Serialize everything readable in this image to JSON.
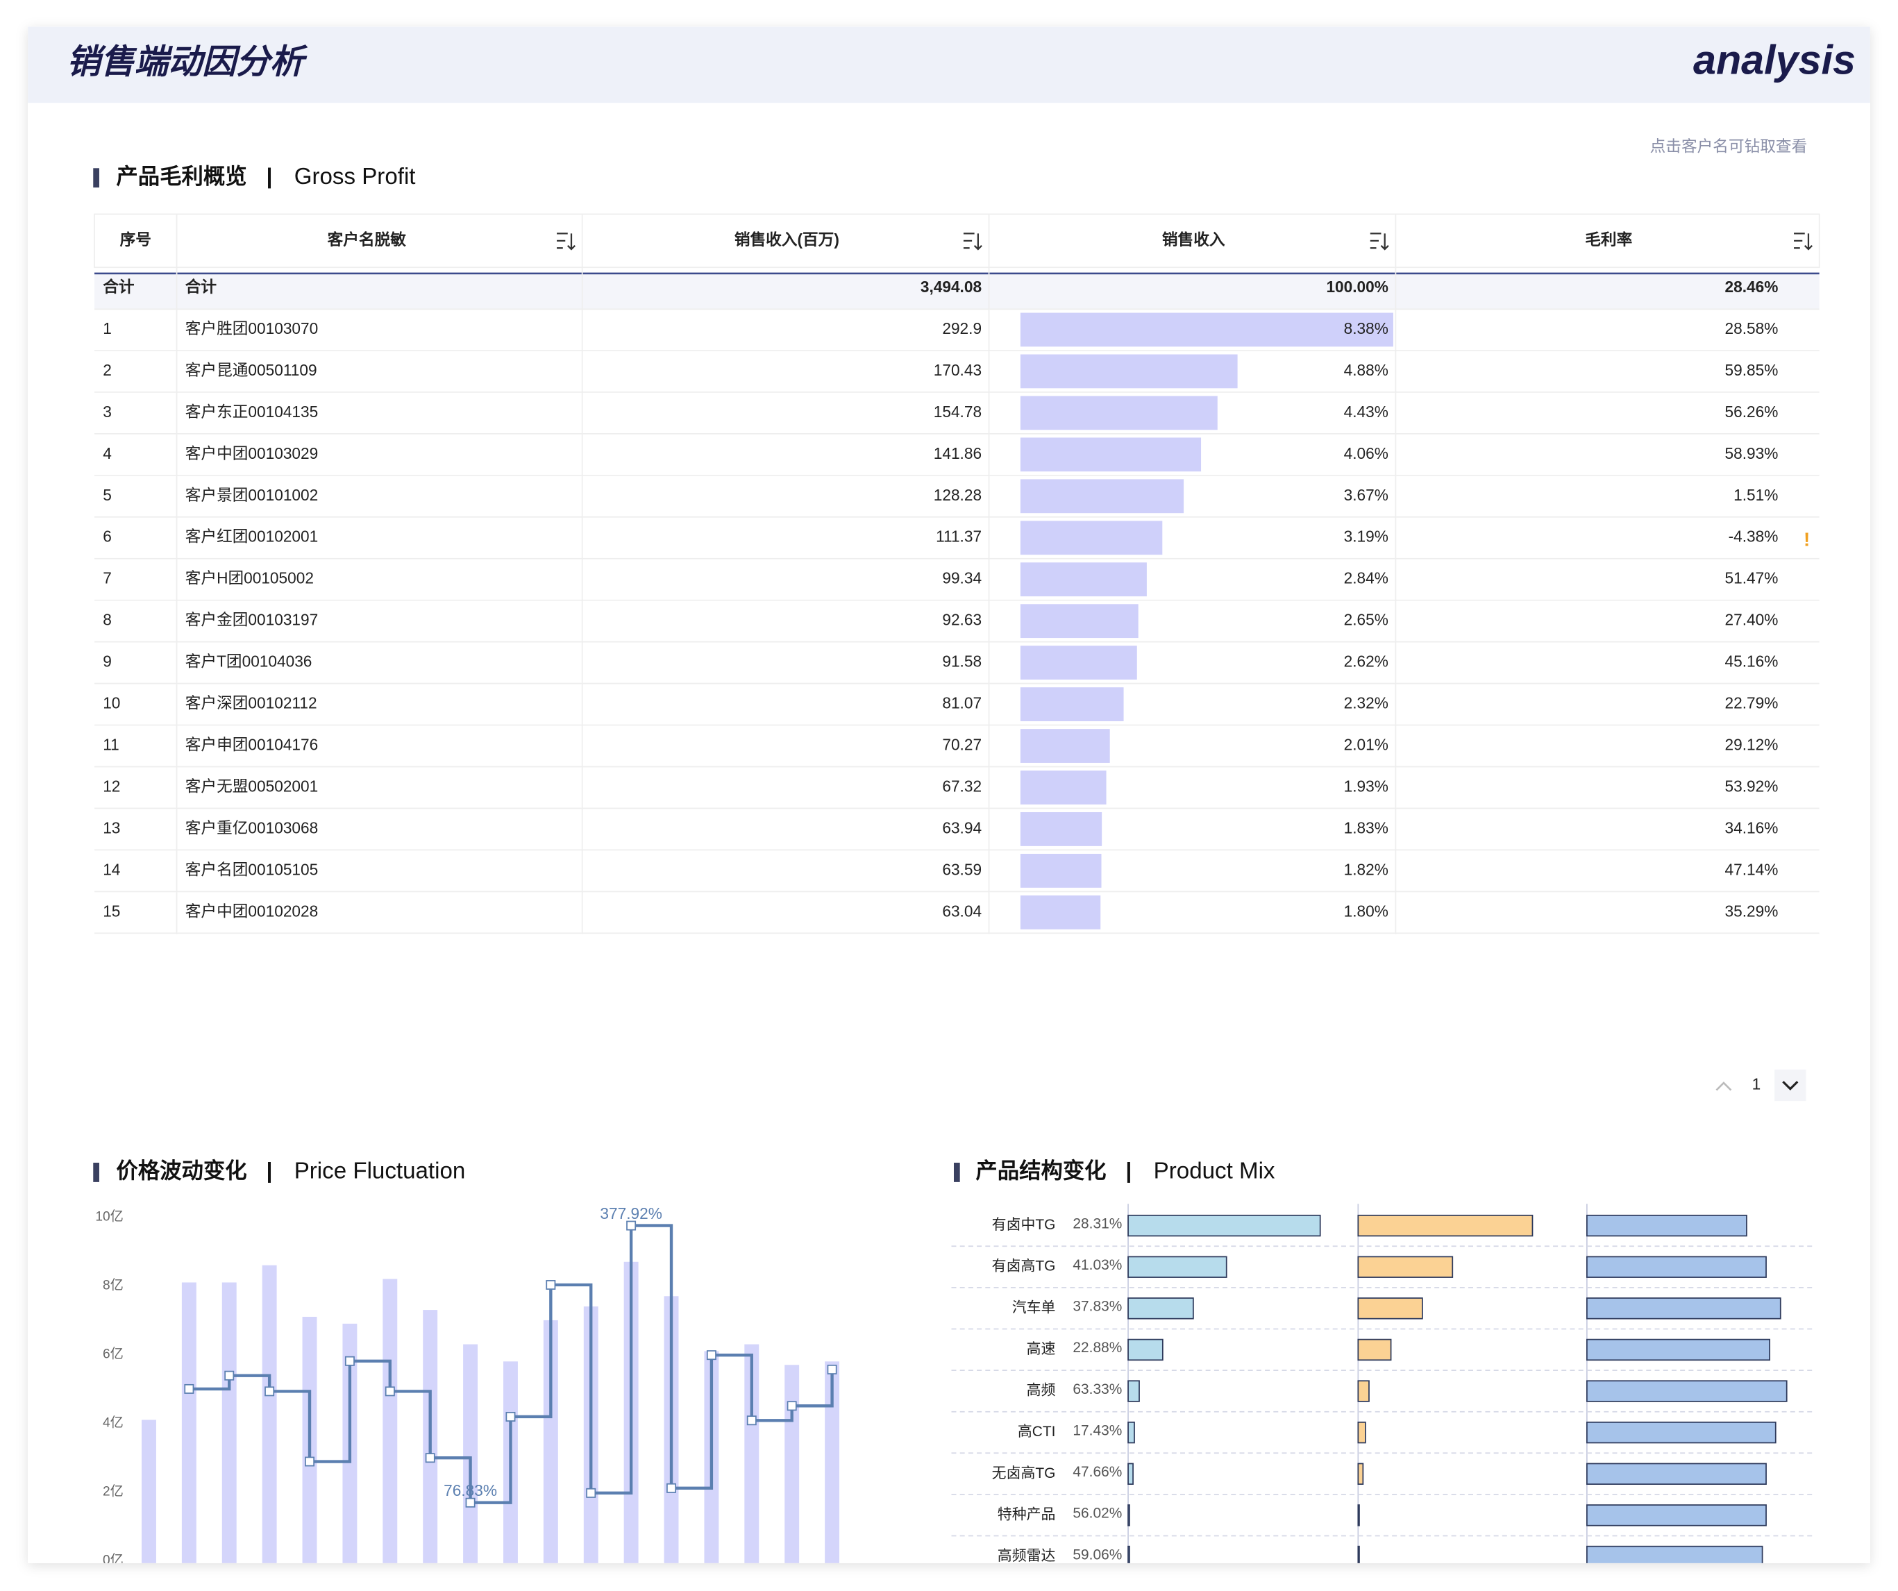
{
  "header": {
    "title": "销售端动因分析",
    "brand": "analysis"
  },
  "gross_profit": {
    "title": "产品毛利概览",
    "subtitle": "Gross Profit",
    "hint": "点击客户名可钻取查看",
    "page": 1,
    "columns": [
      "序号",
      "客户名脱敏",
      "销售收入(百万)",
      "销售收入",
      "毛利率"
    ],
    "total": [
      "合计",
      "合计",
      "3,494.08",
      "100.00%",
      "28.46%"
    ],
    "rows": [
      {
        "no": 1,
        "name": "客户胜团00103070",
        "revenue": 292.9,
        "share": 8.38,
        "share_label": "8.38%",
        "margin": "28.58%"
      },
      {
        "no": 2,
        "name": "客户昆通00501109",
        "revenue": 170.43,
        "share": 4.88,
        "share_label": "4.88%",
        "margin": "59.85%"
      },
      {
        "no": 3,
        "name": "客户东正00104135",
        "revenue": 154.78,
        "share": 4.43,
        "share_label": "4.43%",
        "margin": "56.26%"
      },
      {
        "no": 4,
        "name": "客户中团00103029",
        "revenue": 141.86,
        "share": 4.06,
        "share_label": "4.06%",
        "margin": "58.93%"
      },
      {
        "no": 5,
        "name": "客户景团00101002",
        "revenue": 128.28,
        "share": 3.67,
        "share_label": "3.67%",
        "margin": "1.51%"
      },
      {
        "no": 6,
        "name": "客户红团00102001",
        "revenue": 111.37,
        "share": 3.19,
        "share_label": "3.19%",
        "margin": "-4.38%"
      },
      {
        "no": 7,
        "name": "客户H团00105002",
        "revenue": 99.34,
        "share": 2.84,
        "share_label": "2.84%",
        "margin": "51.47%"
      },
      {
        "no": 8,
        "name": "客户金团00103197",
        "revenue": 92.63,
        "share": 2.65,
        "share_label": "2.65%",
        "margin": "27.40%"
      },
      {
        "no": 9,
        "name": "客户T团00104036",
        "revenue": 91.58,
        "share": 2.62,
        "share_label": "2.62%",
        "margin": "45.16%"
      },
      {
        "no": 10,
        "name": "客户深团00102112",
        "revenue": 81.07,
        "share": 2.32,
        "share_label": "2.32%",
        "margin": "22.79%"
      },
      {
        "no": 11,
        "name": "客户申团00104176",
        "revenue": 70.27,
        "share": 2.01,
        "share_label": "2.01%",
        "margin": "29.12%"
      },
      {
        "no": 12,
        "name": "客户无盟00502001",
        "revenue": 67.32,
        "share": 1.93,
        "share_label": "1.93%",
        "margin": "53.92%"
      },
      {
        "no": 13,
        "name": "客户重亿00103068",
        "revenue": 63.94,
        "share": 1.83,
        "share_label": "1.83%",
        "margin": "34.16%"
      },
      {
        "no": 14,
        "name": "客户名团00105105",
        "revenue": 63.59,
        "share": 1.82,
        "share_label": "1.82%",
        "margin": "47.14%"
      },
      {
        "no": 15,
        "name": "客户中团00102028",
        "revenue": 63.04,
        "share": 1.8,
        "share_label": "1.80%",
        "margin": "35.29%"
      }
    ]
  },
  "chart_data": [
    {
      "type": "bar",
      "title": "价格波动变化",
      "subtitle": "Price Fluctuation",
      "categories": [
        null,
        null,
        null,
        null,
        null,
        null,
        null,
        null,
        null,
        null,
        null,
        null,
        null,
        null,
        null,
        null,
        null,
        null
      ],
      "series": [
        {
          "type": "bar",
          "color": "#d4d5fb",
          "values": [
            4.1,
            8.1,
            8.1,
            8.6,
            7.1,
            6.9,
            8.2,
            7.3,
            6.3,
            5.8,
            7.0,
            7.4,
            8.7,
            7.7,
            6.1,
            6.3,
            5.7,
            5.8
          ]
        },
        {
          "type": "step",
          "axis": "y2",
          "color": "#5b7fb0",
          "values": [
            null,
            200.4,
            214.9,
            197.8,
            121.5,
            230.7,
            197.8,
            125.5,
            76.83,
            170.2,
            313.5,
            87.3,
            377.92,
            92.6,
            237.2,
            166.2,
            182.0,
            221.5
          ],
          "value_labels": [
            null,
            null,
            null,
            null,
            null,
            null,
            null,
            null,
            "76.83%",
            null,
            null,
            null,
            "377.92%",
            null,
            null,
            null,
            null,
            null
          ]
        }
      ],
      "ylim": [
        0,
        10
      ],
      "yticks": [
        {
          "value": 0,
          "label": "0亿"
        },
        {
          "value": 2,
          "label": "2亿"
        },
        {
          "value": 4,
          "label": "4亿"
        },
        {
          "value": 6,
          "label": "6亿"
        },
        {
          "value": 8,
          "label": "8亿"
        },
        {
          "value": 10,
          "label": "10亿"
        }
      ],
      "y2lim": [
        13.7,
        387.1
      ]
    },
    {
      "type": "hbar",
      "title": "产品结构变化",
      "subtitle": "Product Mix",
      "categories": [
        "有卤中TG",
        "有卤高TG",
        "汽车单",
        "高速",
        "高频",
        "高CTI",
        "无卤高TG",
        "特种产品",
        "高频雷达"
      ],
      "category_notes": [
        "28.31%",
        "41.03%",
        "37.83%",
        "22.88%",
        "63.33%",
        "17.43%",
        "47.66%",
        "56.02%",
        "59.06%"
      ],
      "xlim": [
        0,
        100
      ],
      "series": [
        {
          "color": "#b7dcec",
          "values": [
            86.7,
            44.4,
            29.4,
            15.6,
            5.0,
            2.8,
            2.2,
            0.6,
            0.6
          ]
        },
        {
          "color": "#fbd294",
          "values": [
            78.7,
            42.6,
            29.0,
            14.8,
            4.9,
            3.3,
            2.2,
            0.5,
            0.5
          ]
        },
        {
          "color": "#a6c3ea",
          "values": [
            72.1,
            80.9,
            87.4,
            82.5,
            90.2,
            85.2,
            80.9,
            80.9,
            79.2
          ]
        }
      ]
    }
  ]
}
